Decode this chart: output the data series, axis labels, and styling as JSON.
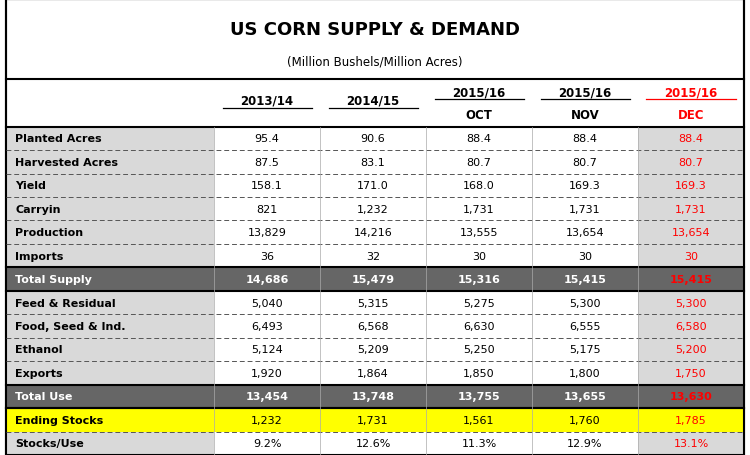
{
  "title": "US CORN SUPPLY & DEMAND",
  "subtitle": "(Million Bushels/Million Acres)",
  "col_labels": [
    "",
    "2013/14",
    "2014/15",
    "2015/16",
    "2015/16",
    "2015/16"
  ],
  "col_sublabels": [
    "",
    "",
    "",
    "OCT",
    "NOV",
    "DEC"
  ],
  "rows": [
    [
      "Planted Acres",
      "95.4",
      "90.6",
      "88.4",
      "88.4",
      "88.4"
    ],
    [
      "Harvested Acres",
      "87.5",
      "83.1",
      "80.7",
      "80.7",
      "80.7"
    ],
    [
      "Yield",
      "158.1",
      "171.0",
      "168.0",
      "169.3",
      "169.3"
    ],
    [
      "Carryin",
      "821",
      "1,232",
      "1,731",
      "1,731",
      "1,731"
    ],
    [
      "Production",
      "13,829",
      "14,216",
      "13,555",
      "13,654",
      "13,654"
    ],
    [
      "Imports",
      "36",
      "32",
      "30",
      "30",
      "30"
    ],
    [
      "Total Supply",
      "14,686",
      "15,479",
      "15,316",
      "15,415",
      "15,415"
    ],
    [
      "Feed & Residual",
      "5,040",
      "5,315",
      "5,275",
      "5,300",
      "5,300"
    ],
    [
      "Food, Seed & Ind.",
      "6,493",
      "6,568",
      "6,630",
      "6,555",
      "6,580"
    ],
    [
      "Ethanol",
      "5,124",
      "5,209",
      "5,250",
      "5,175",
      "5,200"
    ],
    [
      "Exports",
      "1,920",
      "1,864",
      "1,850",
      "1,800",
      "1,750"
    ],
    [
      "Total Use",
      "13,454",
      "13,748",
      "13,755",
      "13,655",
      "13,630"
    ],
    [
      "Ending Stocks",
      "1,232",
      "1,731",
      "1,561",
      "1,760",
      "1,785"
    ],
    [
      "Stocks/Use",
      "9.2%",
      "12.6%",
      "11.3%",
      "12.9%",
      "13.1%"
    ]
  ],
  "row_types": [
    "normal",
    "normal",
    "normal",
    "normal",
    "normal",
    "normal",
    "total",
    "normal",
    "normal",
    "normal",
    "normal",
    "total",
    "ending_stocks",
    "normal"
  ],
  "light_gray_bg": "#d9d9d9",
  "dark_gray_bg": "#666666",
  "yellow_bg": "#ffff00",
  "white_bg": "#ffffff",
  "black_text": "#000000",
  "white_text": "#ffffff",
  "red_text": "#ff0000"
}
